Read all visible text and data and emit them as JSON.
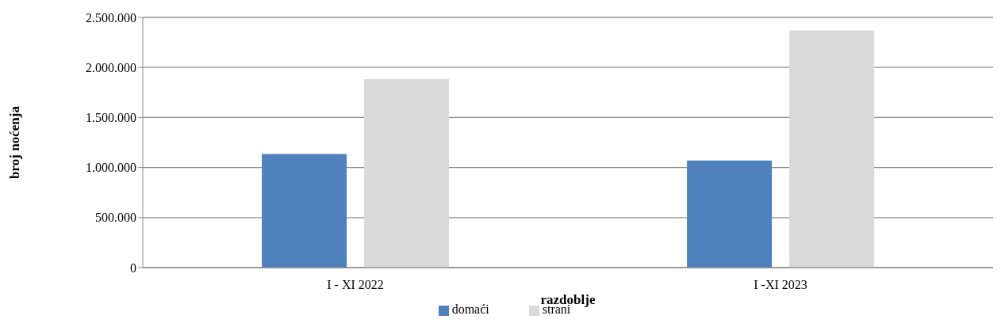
{
  "chart_data": {
    "type": "bar",
    "xlabel": "razdoblje",
    "ylabel": "broj noćenja",
    "categories": [
      "I - XI 2022",
      "I -XI 2023"
    ],
    "series": [
      {
        "name": "domaći",
        "color": "#4f81bd",
        "values": [
          1135000,
          1070000
        ]
      },
      {
        "name": "strani",
        "color": "#d9d9d9",
        "values": [
          1885000,
          2370000
        ]
      }
    ],
    "ylim": [
      0,
      2500000
    ],
    "yticks": [
      {
        "value": 0,
        "label": "0"
      },
      {
        "value": 500000,
        "label": "500.000"
      },
      {
        "value": 1000000,
        "label": "1.000.000"
      },
      {
        "value": 1500000,
        "label": "1.500.000"
      },
      {
        "value": 2000000,
        "label": "2.000.000"
      },
      {
        "value": 2500000,
        "label": "2.500.000"
      }
    ],
    "grid": "y",
    "legend": "bottom"
  }
}
